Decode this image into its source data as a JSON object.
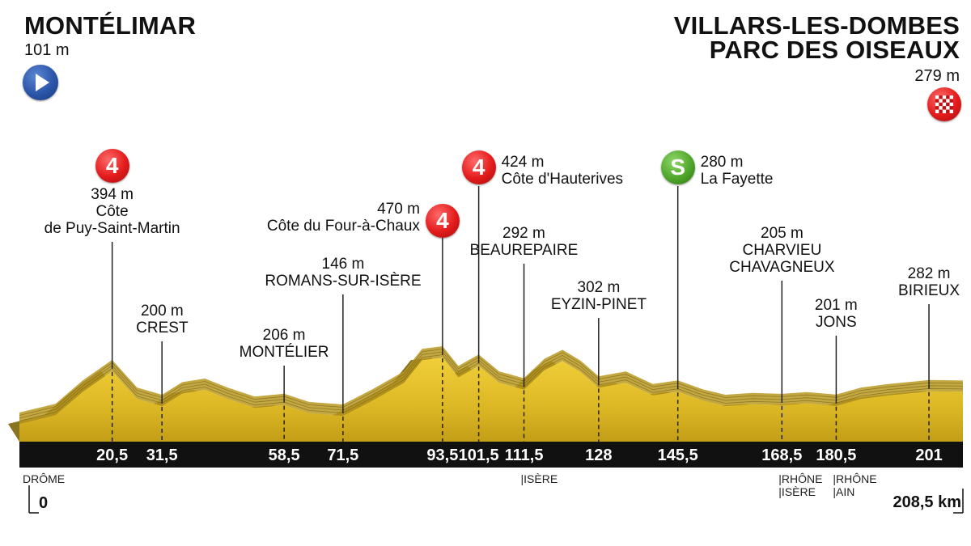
{
  "start": {
    "name": "MONTÉLIMAR",
    "altitude": "101 m"
  },
  "finish": {
    "name_line1": "VILLARS-LES-DOMBES",
    "name_line2": "PARC DES OISEAUX",
    "altitude": "279 m"
  },
  "icons": {
    "start": "play-icon",
    "finish": "checkered-flag-icon"
  },
  "colors": {
    "terrain": "#d9b51f",
    "terrain_shadow": "#8a7420",
    "bar": "#111111",
    "climb_badge": "#e31b1b",
    "sprint_badge": "#4fa62a",
    "start_badge": "#2b55a8"
  },
  "chart_data": {
    "type": "area",
    "x_unit": "km",
    "total_distance": "208,5 km",
    "start_km": "0",
    "profile": [
      {
        "km": 0,
        "alt": 101
      },
      {
        "km": 8,
        "alt": 150
      },
      {
        "km": 14,
        "alt": 280
      },
      {
        "km": 20.5,
        "alt": 394
      },
      {
        "km": 26,
        "alt": 240
      },
      {
        "km": 31.5,
        "alt": 200
      },
      {
        "km": 36,
        "alt": 270
      },
      {
        "km": 41,
        "alt": 290
      },
      {
        "km": 46,
        "alt": 240
      },
      {
        "km": 52,
        "alt": 190
      },
      {
        "km": 58.5,
        "alt": 206
      },
      {
        "km": 64,
        "alt": 160
      },
      {
        "km": 71.5,
        "alt": 146
      },
      {
        "km": 78,
        "alt": 230
      },
      {
        "km": 85,
        "alt": 330
      },
      {
        "km": 89,
        "alt": 455
      },
      {
        "km": 93.5,
        "alt": 470
      },
      {
        "km": 97,
        "alt": 360
      },
      {
        "km": 101.5,
        "alt": 424
      },
      {
        "km": 106,
        "alt": 330
      },
      {
        "km": 111.5,
        "alt": 292
      },
      {
        "km": 116,
        "alt": 400
      },
      {
        "km": 120,
        "alt": 450
      },
      {
        "km": 124,
        "alt": 390
      },
      {
        "km": 128,
        "alt": 302
      },
      {
        "km": 134,
        "alt": 330
      },
      {
        "km": 140,
        "alt": 260
      },
      {
        "km": 145.5,
        "alt": 280
      },
      {
        "km": 151,
        "alt": 230
      },
      {
        "km": 156,
        "alt": 200
      },
      {
        "km": 162,
        "alt": 210
      },
      {
        "km": 168.5,
        "alt": 205
      },
      {
        "km": 174,
        "alt": 215
      },
      {
        "km": 180.5,
        "alt": 201
      },
      {
        "km": 186,
        "alt": 240
      },
      {
        "km": 192,
        "alt": 260
      },
      {
        "km": 201,
        "alt": 282
      },
      {
        "km": 208.5,
        "alt": 279
      }
    ],
    "points": [
      {
        "km": "20,5",
        "alt": "394 m",
        "name_lines": [
          "Côte",
          "de Puy-Saint-Martin"
        ],
        "badge": "4",
        "badge_type": "climb"
      },
      {
        "km": "31,5",
        "alt": "200 m",
        "name_lines": [
          "CREST"
        ]
      },
      {
        "km": "58,5",
        "alt": "206 m",
        "name_lines": [
          "MONTÉLIER"
        ]
      },
      {
        "km": "71,5",
        "alt": "146 m",
        "name_lines": [
          "ROMANS-SUR-ISÈRE"
        ]
      },
      {
        "km": "93,5",
        "alt": "470 m",
        "name_lines": [
          "Côte du Four-à-Chaux"
        ],
        "badge": "4",
        "badge_type": "climb"
      },
      {
        "km": "101,5",
        "alt": "424 m",
        "name_lines": [
          "Côte d'Hauterives"
        ],
        "badge": "4",
        "badge_type": "climb"
      },
      {
        "km": "111,5",
        "alt": "292 m",
        "name_lines": [
          "BEAUREPAIRE"
        ]
      },
      {
        "km": "128",
        "alt": "302 m",
        "name_lines": [
          "EYZIN-PINET"
        ]
      },
      {
        "km": "145,5",
        "alt": "280 m",
        "name_lines": [
          "La Fayette"
        ],
        "badge": "S",
        "badge_type": "sprint"
      },
      {
        "km": "168,5",
        "alt": "205 m",
        "name_lines": [
          "CHARVIEU",
          "CHAVAGNEUX"
        ]
      },
      {
        "km": "180,5",
        "alt": "201 m",
        "name_lines": [
          "JONS"
        ]
      },
      {
        "km": "201",
        "alt": "282 m",
        "name_lines": [
          "BIRIEUX"
        ]
      }
    ],
    "regions": [
      {
        "km": 0,
        "lines": [
          "DRÔME"
        ]
      },
      {
        "km": 111.5,
        "lines": [
          "|ISÈRE"
        ]
      },
      {
        "km": 168.5,
        "lines": [
          "|RHÔNE",
          "|ISÈRE"
        ]
      },
      {
        "km": 180.5,
        "lines": [
          "|RHÔNE",
          "|AIN"
        ]
      }
    ]
  }
}
